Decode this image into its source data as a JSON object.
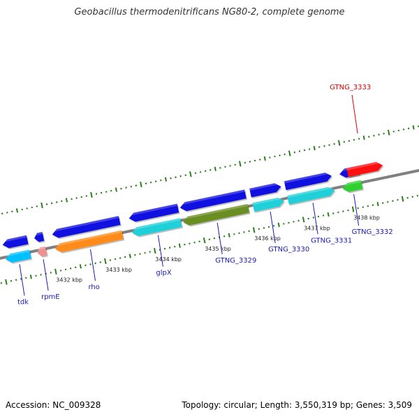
{
  "title": "Geobacillus thermodenitrificans NG80-2, complete genome",
  "footer": {
    "accession": "Accession: NC_009328",
    "summary": "Topology: circular; Length: 3,550,319 bp; Genes: 3,509"
  },
  "colors": {
    "backbone": "#808080",
    "tick": "#2e7d1e",
    "gene_label_default": "#1a1ab0",
    "gene_label_highlight": "#e00000"
  },
  "scale_labels": [
    {
      "kbp": 3432,
      "text": "3432 kbp"
    },
    {
      "kbp": 3433,
      "text": "3433 kbp"
    },
    {
      "kbp": 3434,
      "text": "3434 kbp"
    },
    {
      "kbp": 3435,
      "text": "3435 kbp"
    },
    {
      "kbp": 3436,
      "text": "3436 kbp"
    },
    {
      "kbp": 3437,
      "text": "3437 kbp"
    },
    {
      "kbp": 3438,
      "text": "3438 kbp"
    }
  ],
  "genes": [
    {
      "name": "tdk",
      "label": "tdk",
      "start_kbp": 3431.08,
      "end_kbp": 3431.58,
      "strand": "reverse",
      "cds_color": "#00c0ff"
    },
    {
      "name": "rpmE",
      "label": "rpmE",
      "start_kbp": 3431.72,
      "end_kbp": 3431.9,
      "strand": "reverse",
      "cds_color": "#f09090"
    },
    {
      "name": "rho",
      "label": "rho",
      "start_kbp": 3432.08,
      "end_kbp": 3433.44,
      "strand": "reverse",
      "cds_color": "#ff8c1a"
    },
    {
      "name": "glpX",
      "label": "glpX",
      "start_kbp": 3433.63,
      "end_kbp": 3434.62,
      "strand": "reverse",
      "cds_color": "#20d0d8"
    },
    {
      "name": "GTNG_3329",
      "label": "GTNG_3329",
      "start_kbp": 3434.66,
      "end_kbp": 3435.98,
      "strand": "reverse",
      "cds_color": "#6b8e23"
    },
    {
      "name": "GTNG_3330",
      "label": "GTNG_3330",
      "start_kbp": 3436.08,
      "end_kbp": 3436.7,
      "strand": "forward",
      "cds_color": "#20d0d8"
    },
    {
      "name": "GTNG_3331",
      "label": "GTNG_3331",
      "start_kbp": 3436.78,
      "end_kbp": 3437.72,
      "strand": "forward",
      "cds_color": "#20d0d8"
    },
    {
      "name": "GTNG_3332",
      "label": "GTNG_3332",
      "start_kbp": 3437.88,
      "end_kbp": 3438.27,
      "strand": "reverse",
      "cds_color": "#30d030"
    },
    {
      "name": "GTNG_3333",
      "label": "GTNG_3333",
      "start_kbp": 3438.04,
      "end_kbp": 3438.75,
      "strand": "forward",
      "cds_color": "#ff1010",
      "highlight": true
    }
  ]
}
